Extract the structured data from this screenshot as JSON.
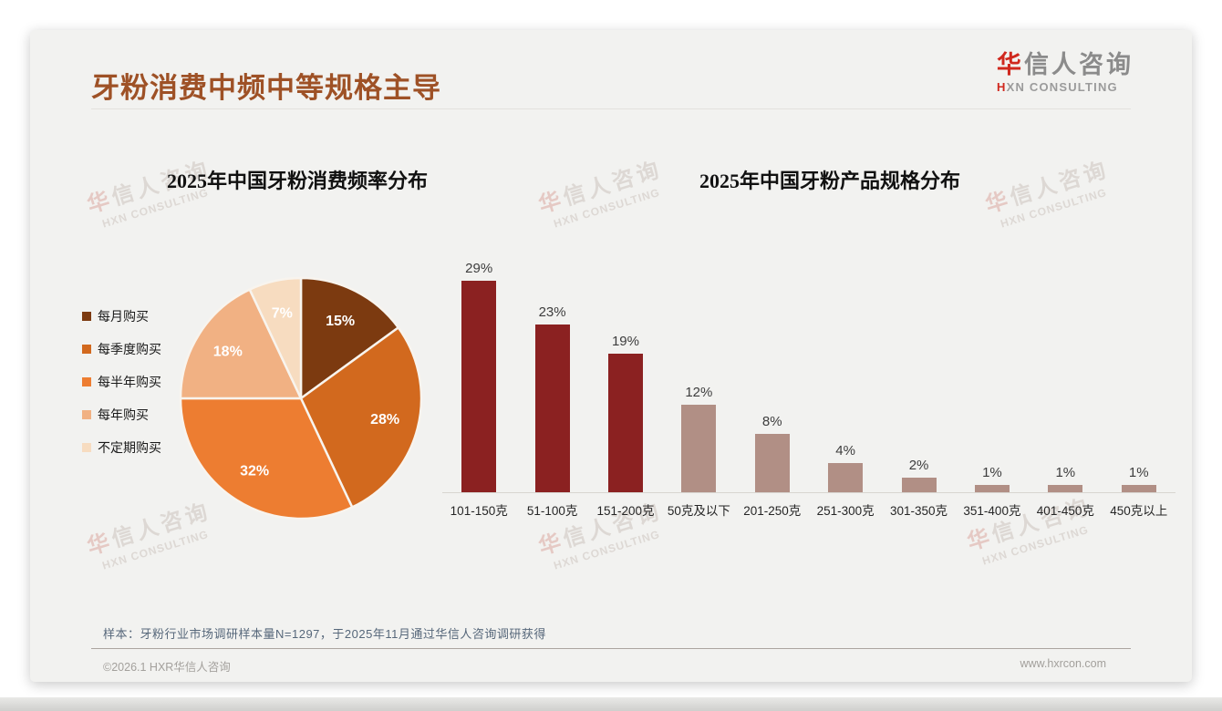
{
  "page": {
    "title": "牙粉消费中频中等规格主导",
    "logo": {
      "zh_red": "华",
      "zh_gray": "信人咨询",
      "en_red": "H",
      "en_gray": "XN CONSULTING"
    },
    "watermark": {
      "line1_red": "华",
      "line1_gray": "信人咨询",
      "line2": "HXN CONSULTING"
    },
    "footnote": "样本：牙粉行业市场调研样本量N=1297，于2025年11月通过华信人咨询调研获得",
    "copyright": "©2026.1 HXR华信人咨询",
    "website": "www.hxrcon.com"
  },
  "colors": {
    "title_brown": "#9E5126",
    "logo_red": "#D0281E",
    "card_bg": "#F2F2F0",
    "pie_stroke": "#F8F4EE",
    "bar_dark_red": "#8B2121",
    "bar_mauve": "#B18F85"
  },
  "chart_data": [
    {
      "type": "pie",
      "title": "2025年中国牙粉消费频率分布",
      "labels": [
        "每月购买",
        "每季度购买",
        "每半年购买",
        "每年购买",
        "不定期购买"
      ],
      "values": [
        15,
        28,
        32,
        18,
        7
      ],
      "data_labels": [
        "15%",
        "28%",
        "32%",
        "18%",
        "7%"
      ],
      "colors": [
        "#7C3A10",
        "#D2691E",
        "#ED7D31",
        "#F1B183",
        "#F7DCC0"
      ],
      "legend_position": "left",
      "start_angle_deg": 0,
      "direction": "clockwise"
    },
    {
      "type": "bar",
      "title": "2025年中国牙粉产品规格分布",
      "categories": [
        "101-150克",
        "51-100克",
        "151-200克",
        "50克及以下",
        "201-250克",
        "251-300克",
        "301-350克",
        "351-400克",
        "401-450克",
        "450克以上"
      ],
      "values": [
        29,
        23,
        19,
        12,
        8,
        4,
        2,
        1,
        1,
        1
      ],
      "value_labels": [
        "29%",
        "23%",
        "19%",
        "12%",
        "8%",
        "4%",
        "2%",
        "1%",
        "1%",
        "1%"
      ],
      "bar_colors": [
        "#8B2121",
        "#8B2121",
        "#8B2121",
        "#B18F85",
        "#B18F85",
        "#B18F85",
        "#B18F85",
        "#B18F85",
        "#B18F85",
        "#B18F85"
      ],
      "xlabel": "",
      "ylabel": "",
      "ylim": [
        0,
        32
      ],
      "grid": false,
      "axis_line": true,
      "data_labels_position": "above"
    }
  ]
}
